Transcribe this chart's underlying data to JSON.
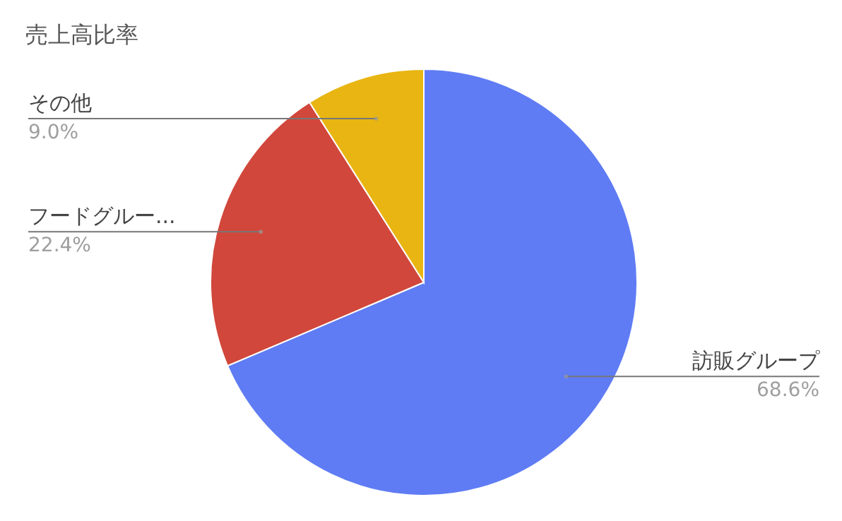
{
  "chart_data": {
    "type": "pie",
    "title": "売上高比率",
    "categories": [
      "訪販グループ",
      "フードグルー...",
      "その他"
    ],
    "values": [
      68.6,
      22.4,
      9.0
    ],
    "value_labels": [
      "68.6%",
      "22.4%",
      "9.0%"
    ],
    "colors": [
      "#5f7cf4",
      "#d1473b",
      "#e8b512"
    ]
  }
}
